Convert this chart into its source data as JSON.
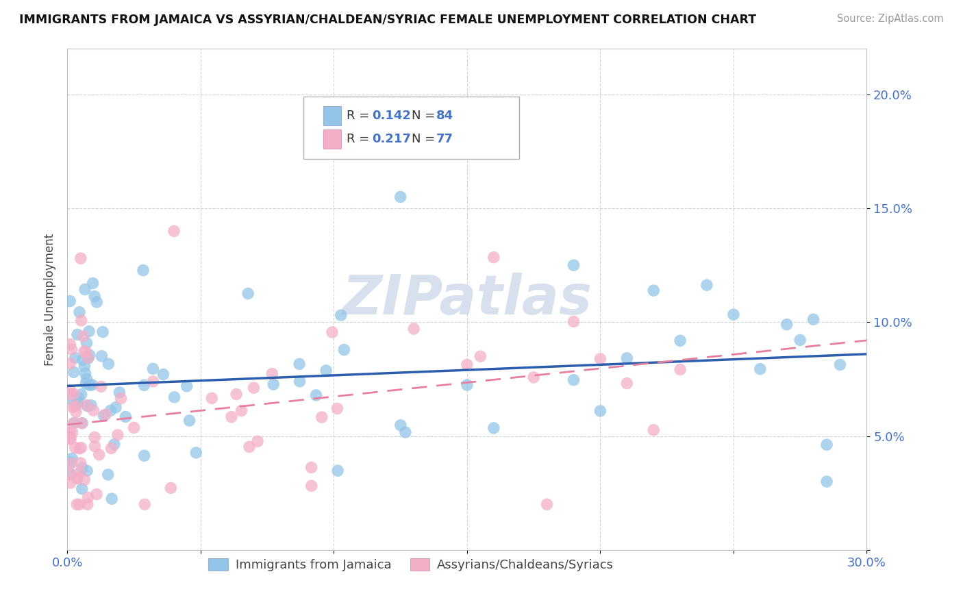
{
  "title": "IMMIGRANTS FROM JAMAICA VS ASSYRIAN/CHALDEAN/SYRIAC FEMALE UNEMPLOYMENT CORRELATION CHART",
  "source": "Source: ZipAtlas.com",
  "ylabel": "Female Unemployment",
  "legend_r1": "0.142",
  "legend_n1": "84",
  "legend_r2": "0.217",
  "legend_n2": "77",
  "color_blue": "#93c5e8",
  "color_pink": "#f4afc8",
  "color_line_blue": "#2b5fad",
  "color_line_pink": "#e87fa0",
  "color_text_blue": "#4472C4",
  "series1_label": "Immigrants from Jamaica",
  "series2_label": "Assyrians/Chaldeans/Syriacs",
  "xlim": [
    0.0,
    0.3
  ],
  "ylim": [
    0.0,
    0.22
  ],
  "background_color": "#ffffff",
  "grid_color": "#c8c8c8",
  "watermark_color": "#d8e0ee",
  "trendline1_x0": 0.0,
  "trendline1_y0": 0.072,
  "trendline1_x1": 0.3,
  "trendline1_y1": 0.086,
  "trendline2_x0": 0.0,
  "trendline2_y0": 0.055,
  "trendline2_x1": 0.3,
  "trendline2_y1": 0.092
}
